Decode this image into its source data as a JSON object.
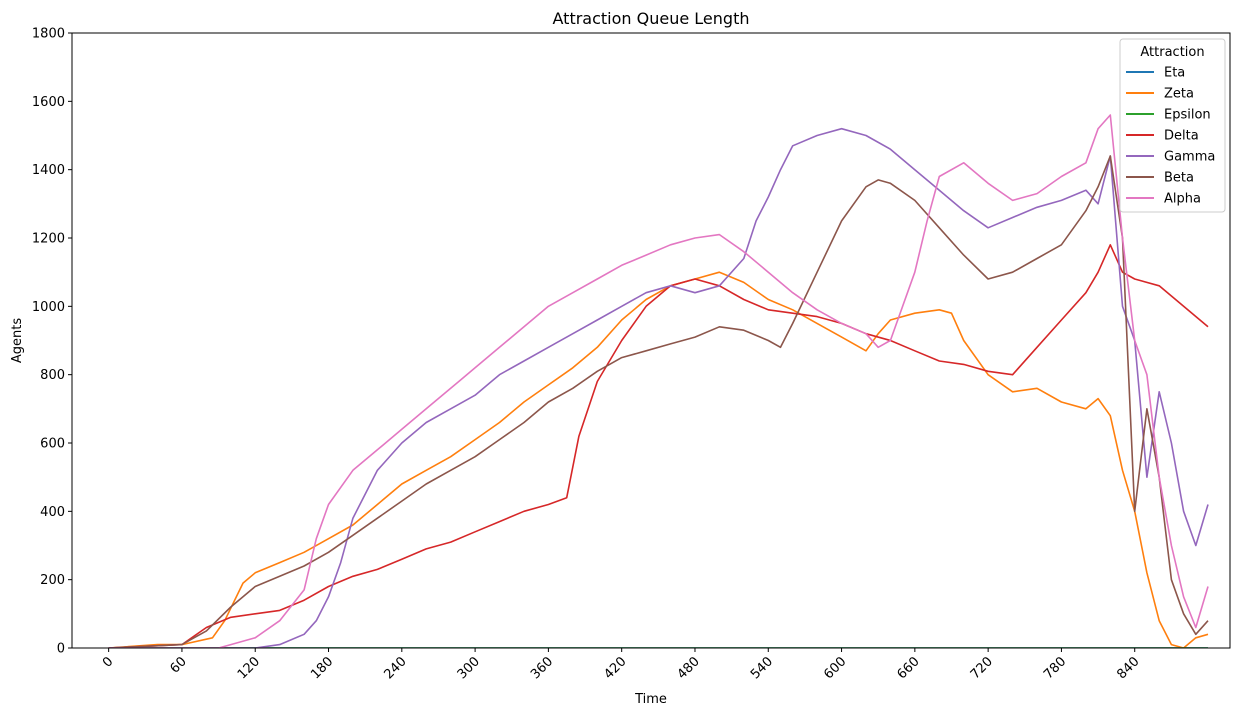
{
  "chart_data": {
    "type": "line",
    "title": "Attraction Queue Length",
    "xlabel": "Time",
    "ylabel": "Agents",
    "xlim": [
      -30,
      918
    ],
    "ylim": [
      0,
      1800
    ],
    "x_ticks": [
      0,
      60,
      120,
      180,
      240,
      300,
      360,
      420,
      480,
      540,
      600,
      660,
      720,
      780,
      840
    ],
    "y_ticks": [
      0,
      200,
      400,
      600,
      800,
      1000,
      1200,
      1400,
      1600,
      1800
    ],
    "x_tick_rotation": 45,
    "grid": false,
    "legend": {
      "title": "Attraction",
      "position": "top-right"
    },
    "series": [
      {
        "name": "Eta",
        "color": "#1f77b4",
        "x": [
          0,
          60,
          120,
          180,
          240,
          300,
          360,
          420,
          480,
          540,
          600,
          660,
          720,
          780,
          840,
          900
        ],
        "y": [
          0,
          0,
          0,
          0,
          0,
          0,
          0,
          0,
          0,
          0,
          0,
          0,
          0,
          0,
          0,
          0
        ]
      },
      {
        "name": "Zeta",
        "color": "#ff7f0e",
        "x": [
          0,
          40,
          60,
          85,
          95,
          110,
          120,
          140,
          160,
          180,
          200,
          220,
          240,
          260,
          280,
          300,
          320,
          340,
          360,
          380,
          400,
          420,
          440,
          460,
          480,
          500,
          520,
          540,
          560,
          580,
          600,
          620,
          630,
          640,
          660,
          680,
          690,
          700,
          720,
          740,
          760,
          780,
          800,
          810,
          820,
          830,
          840,
          850,
          860,
          870,
          880,
          890,
          900
        ],
        "y": [
          0,
          10,
          10,
          30,
          80,
          190,
          220,
          250,
          280,
          320,
          360,
          420,
          480,
          520,
          560,
          610,
          660,
          720,
          770,
          820,
          880,
          960,
          1020,
          1060,
          1080,
          1100,
          1070,
          1020,
          990,
          950,
          910,
          870,
          920,
          960,
          980,
          990,
          980,
          900,
          800,
          750,
          760,
          720,
          700,
          730,
          680,
          520,
          400,
          220,
          80,
          10,
          0,
          30,
          40
        ]
      },
      {
        "name": "Epsilon",
        "color": "#2ca02c",
        "x": [
          0,
          60,
          120,
          180,
          240,
          300,
          360,
          420,
          480,
          540,
          600,
          660,
          720,
          780,
          840,
          900
        ],
        "y": [
          0,
          0,
          0,
          0,
          0,
          0,
          0,
          0,
          0,
          0,
          0,
          0,
          0,
          0,
          0,
          0
        ]
      },
      {
        "name": "Delta",
        "color": "#d62728",
        "x": [
          0,
          60,
          80,
          100,
          120,
          140,
          160,
          180,
          200,
          220,
          240,
          260,
          280,
          300,
          320,
          340,
          360,
          375,
          385,
          400,
          420,
          440,
          460,
          480,
          500,
          520,
          540,
          560,
          580,
          600,
          620,
          640,
          660,
          680,
          700,
          720,
          740,
          760,
          780,
          800,
          810,
          820,
          830,
          840,
          860,
          880,
          900
        ],
        "y": [
          0,
          10,
          60,
          90,
          100,
          110,
          140,
          180,
          210,
          230,
          260,
          290,
          310,
          340,
          370,
          400,
          420,
          440,
          620,
          780,
          900,
          1000,
          1060,
          1080,
          1060,
          1020,
          990,
          980,
          970,
          950,
          920,
          900,
          870,
          840,
          830,
          810,
          800,
          880,
          960,
          1040,
          1100,
          1180,
          1100,
          1080,
          1060,
          1000,
          940
        ]
      },
      {
        "name": "Gamma",
        "color": "#9467bd",
        "x": [
          0,
          120,
          140,
          160,
          170,
          180,
          190,
          200,
          220,
          240,
          260,
          280,
          300,
          320,
          340,
          360,
          380,
          400,
          420,
          440,
          460,
          480,
          500,
          520,
          530,
          540,
          550,
          560,
          580,
          600,
          620,
          640,
          660,
          680,
          700,
          720,
          740,
          760,
          780,
          800,
          810,
          820,
          830,
          840,
          850,
          860,
          870,
          880,
          890,
          900
        ],
        "y": [
          0,
          0,
          10,
          40,
          80,
          150,
          250,
          380,
          520,
          600,
          660,
          700,
          740,
          800,
          840,
          880,
          920,
          960,
          1000,
          1040,
          1060,
          1040,
          1060,
          1140,
          1250,
          1320,
          1400,
          1470,
          1500,
          1520,
          1500,
          1460,
          1400,
          1340,
          1280,
          1230,
          1260,
          1290,
          1310,
          1340,
          1300,
          1440,
          1000,
          900,
          500,
          750,
          600,
          400,
          300,
          420
        ]
      },
      {
        "name": "Beta",
        "color": "#8c564b",
        "x": [
          0,
          60,
          80,
          100,
          120,
          140,
          160,
          180,
          200,
          220,
          240,
          260,
          280,
          300,
          320,
          340,
          360,
          380,
          400,
          420,
          440,
          460,
          480,
          500,
          520,
          540,
          550,
          560,
          580,
          600,
          620,
          630,
          640,
          660,
          680,
          700,
          720,
          740,
          760,
          780,
          800,
          810,
          820,
          830,
          840,
          850,
          860,
          870,
          880,
          890,
          900
        ],
        "y": [
          0,
          10,
          50,
          120,
          180,
          210,
          240,
          280,
          330,
          380,
          430,
          480,
          520,
          560,
          610,
          660,
          720,
          760,
          810,
          850,
          870,
          890,
          910,
          940,
          930,
          900,
          880,
          950,
          1100,
          1250,
          1350,
          1370,
          1360,
          1310,
          1230,
          1150,
          1080,
          1100,
          1140,
          1180,
          1280,
          1350,
          1440,
          1200,
          400,
          700,
          500,
          200,
          100,
          40,
          80
        ]
      },
      {
        "name": "Alpha",
        "color": "#e377c2",
        "x": [
          0,
          90,
          100,
          120,
          140,
          160,
          170,
          180,
          200,
          220,
          240,
          260,
          280,
          300,
          320,
          340,
          360,
          380,
          400,
          420,
          440,
          460,
          480,
          500,
          520,
          540,
          560,
          580,
          600,
          620,
          630,
          640,
          660,
          670,
          680,
          700,
          720,
          740,
          760,
          780,
          800,
          810,
          820,
          830,
          840,
          850,
          860,
          870,
          880,
          890,
          900
        ],
        "y": [
          0,
          0,
          10,
          30,
          80,
          170,
          320,
          420,
          520,
          580,
          640,
          700,
          760,
          820,
          880,
          940,
          1000,
          1040,
          1080,
          1120,
          1150,
          1180,
          1200,
          1210,
          1160,
          1100,
          1040,
          990,
          950,
          920,
          880,
          900,
          1100,
          1250,
          1380,
          1420,
          1360,
          1310,
          1330,
          1380,
          1420,
          1520,
          1560,
          1200,
          900,
          800,
          500,
          300,
          150,
          60,
          180
        ]
      }
    ]
  }
}
